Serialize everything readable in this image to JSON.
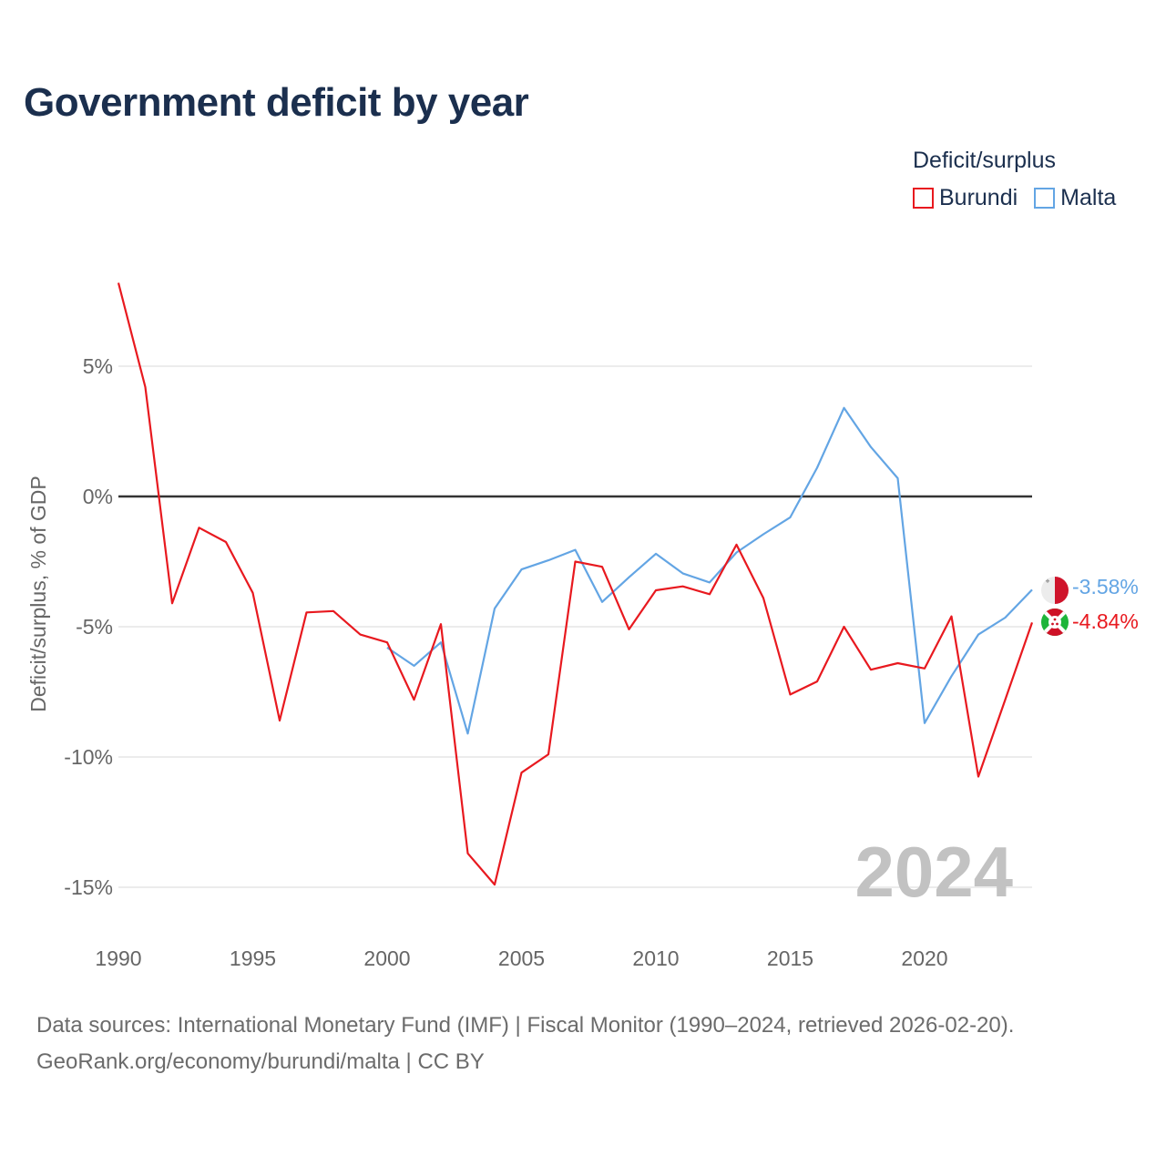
{
  "title": "Government deficit by year",
  "legend": {
    "title": "Deficit/surplus",
    "items": [
      {
        "label": "Burundi",
        "color": "#e8191f"
      },
      {
        "label": "Malta",
        "color": "#63a5e4"
      }
    ]
  },
  "year_watermark": "2024",
  "footer": {
    "line1": "Data sources: International Monetary Fund (IMF) | Fiscal Monitor (1990–2024, retrieved 2026-02-20).",
    "line2": "GeoRank.org/economy/burundi/malta | CC BY"
  },
  "chart_data": {
    "type": "line",
    "title": "Government deficit by year",
    "xlabel": "",
    "ylabel": "Deficit/surplus, % of GDP",
    "xlim": [
      1990,
      2024
    ],
    "ylim": [
      -16.5,
      8.3
    ],
    "x_ticks": [
      1990,
      1995,
      2000,
      2005,
      2010,
      2015,
      2020
    ],
    "x_tick_labels": [
      "1990",
      "1995",
      "2000",
      "2005",
      "2010",
      "2015",
      "2020"
    ],
    "y_ticks": [
      5,
      0,
      -5,
      -10,
      -15
    ],
    "y_tick_labels": [
      "5%",
      "0%",
      "-5%",
      "-10%",
      "-15%"
    ],
    "zero_line": true,
    "grid": true,
    "legend_position": "top-right",
    "series": [
      {
        "name": "Burundi",
        "color": "#e8191f",
        "end_label": "-4.84%",
        "x": [
          1990,
          1991,
          1992,
          1993,
          1994,
          1995,
          1996,
          1997,
          1998,
          1999,
          2000,
          2001,
          2002,
          2003,
          2004,
          2005,
          2006,
          2007,
          2008,
          2009,
          2010,
          2011,
          2012,
          2013,
          2014,
          2015,
          2016,
          2017,
          2018,
          2019,
          2020,
          2021,
          2022,
          2023,
          2024
        ],
        "values": [
          8.2,
          4.2,
          -4.1,
          -1.2,
          -1.75,
          -3.7,
          -8.6,
          -4.45,
          -4.4,
          -5.3,
          -5.6,
          -7.8,
          -4.9,
          -13.7,
          -14.9,
          -10.6,
          -9.9,
          -2.5,
          -2.7,
          -5.1,
          -3.6,
          -3.45,
          -3.75,
          -1.85,
          -3.9,
          -7.6,
          -7.1,
          -5.0,
          -6.65,
          -6.4,
          -6.6,
          -4.6,
          -10.75,
          -7.8,
          -4.84
        ]
      },
      {
        "name": "Malta",
        "color": "#63a5e4",
        "end_label": "-3.58%",
        "x": [
          2000,
          2001,
          2002,
          2003,
          2004,
          2005,
          2006,
          2007,
          2008,
          2009,
          2010,
          2011,
          2012,
          2013,
          2014,
          2015,
          2016,
          2017,
          2018,
          2019,
          2020,
          2021,
          2022,
          2023,
          2024
        ],
        "values": [
          -5.8,
          -6.5,
          -5.6,
          -9.1,
          -4.3,
          -2.8,
          -2.45,
          -2.05,
          -4.05,
          -3.1,
          -2.2,
          -2.95,
          -3.3,
          -2.15,
          -1.45,
          -0.8,
          1.1,
          3.4,
          1.9,
          0.7,
          -8.7,
          -6.9,
          -5.3,
          -4.65,
          -3.58
        ]
      }
    ]
  }
}
